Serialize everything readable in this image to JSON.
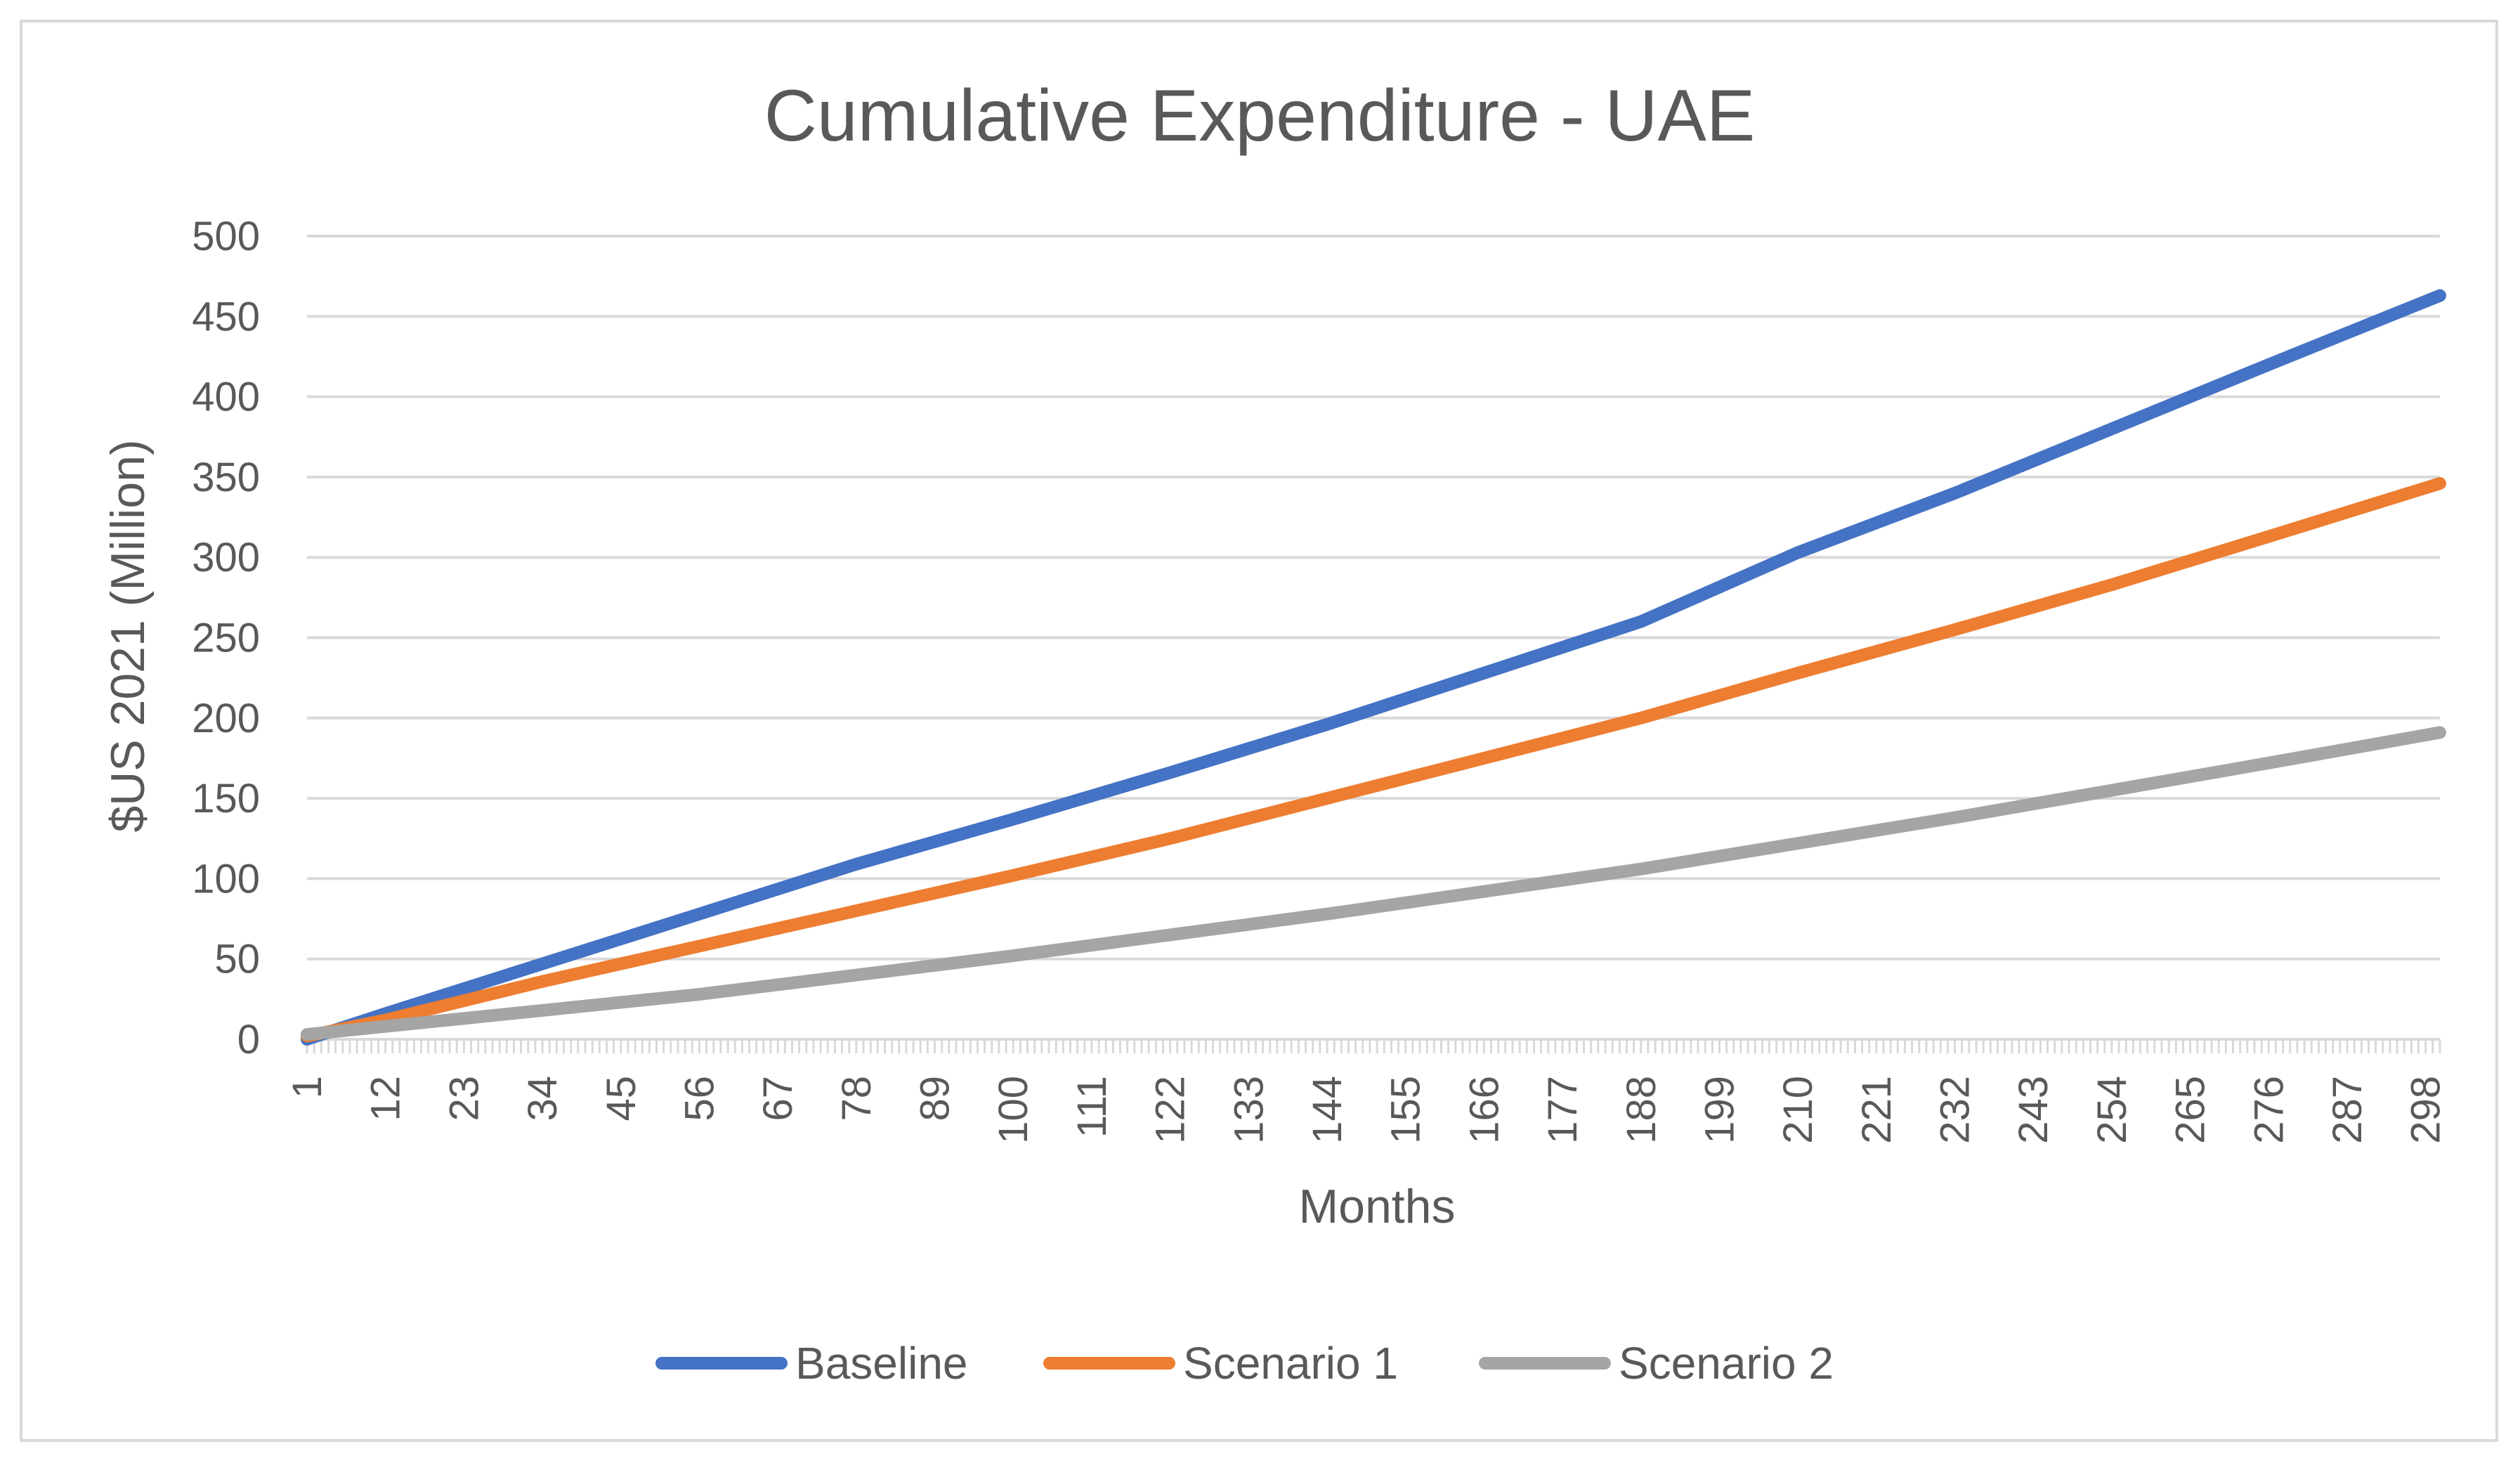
{
  "chart_data": {
    "type": "line",
    "title": "Cumulative Expenditure - UAE",
    "xlabel": "Months",
    "ylabel": "$US 2021 (Million)",
    "xlim": [
      1,
      300
    ],
    "ylim": [
      0,
      500
    ],
    "ytick_step": 50,
    "yticks": [
      0,
      50,
      100,
      150,
      200,
      250,
      300,
      350,
      400,
      450,
      500
    ],
    "xtick_labels": [
      "1",
      "12",
      "23",
      "34",
      "45",
      "56",
      "67",
      "78",
      "89",
      "100",
      "111",
      "122",
      "133",
      "144",
      "155",
      "166",
      "177",
      "188",
      "199",
      "210",
      "221",
      "232",
      "243",
      "254",
      "265",
      "276",
      "287",
      "298"
    ],
    "grid": true,
    "legend_position": "bottom",
    "series": [
      {
        "name": "Baseline",
        "color": "#4472c4",
        "x": [
          1,
          12,
          34,
          56,
          78,
          100,
          122,
          144,
          166,
          188,
          210,
          232,
          254,
          276,
          300
        ],
        "y": [
          0,
          16,
          47,
          78,
          109,
          137,
          166,
          196,
          228,
          260,
          303,
          340,
          380,
          420,
          463
        ]
      },
      {
        "name": "Scenario 1",
        "color": "#ed7d31",
        "x": [
          1,
          12,
          34,
          56,
          78,
          100,
          122,
          144,
          166,
          188,
          210,
          232,
          254,
          276,
          300
        ],
        "y": [
          2,
          12,
          36,
          58,
          80,
          102,
          125,
          150,
          175,
          200,
          228,
          255,
          283,
          313,
          346
        ]
      },
      {
        "name": "Scenario 2",
        "color": "#a5a5a5",
        "x": [
          1,
          12,
          34,
          56,
          78,
          100,
          122,
          144,
          166,
          188,
          210,
          232,
          254,
          276,
          300
        ],
        "y": [
          3,
          8,
          18,
          28,
          40,
          52,
          65,
          78,
          92,
          106,
          122,
          138,
          155,
          172,
          191
        ]
      }
    ]
  }
}
